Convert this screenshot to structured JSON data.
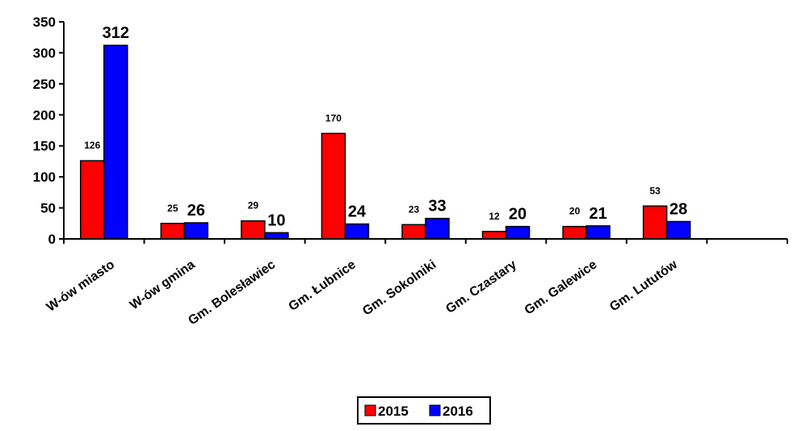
{
  "chart_data": {
    "type": "bar",
    "categories": [
      "W-ów miasto",
      "W-ów gmina",
      "Gm. Bolesławiec",
      "Gm. Łubnice",
      "Gm. Sokolniki",
      "Gm. Czastary",
      "Gm. Galewice",
      "Gm. Lututów"
    ],
    "series": [
      {
        "name": "2015",
        "color": "#ff0000",
        "values": [
          126,
          25,
          29,
          170,
          23,
          12,
          20,
          53
        ]
      },
      {
        "name": "2016",
        "color": "#0000ff",
        "values": [
          312,
          26,
          10,
          24,
          33,
          20,
          21,
          28
        ]
      }
    ],
    "title": "",
    "xlabel": "",
    "ylabel": "",
    "ylim": [
      0,
      350
    ],
    "yticks": [
      "0",
      "50",
      "100",
      "150",
      "200",
      "250",
      "300",
      "350"
    ],
    "grid": false,
    "legend": "bottom-center"
  }
}
